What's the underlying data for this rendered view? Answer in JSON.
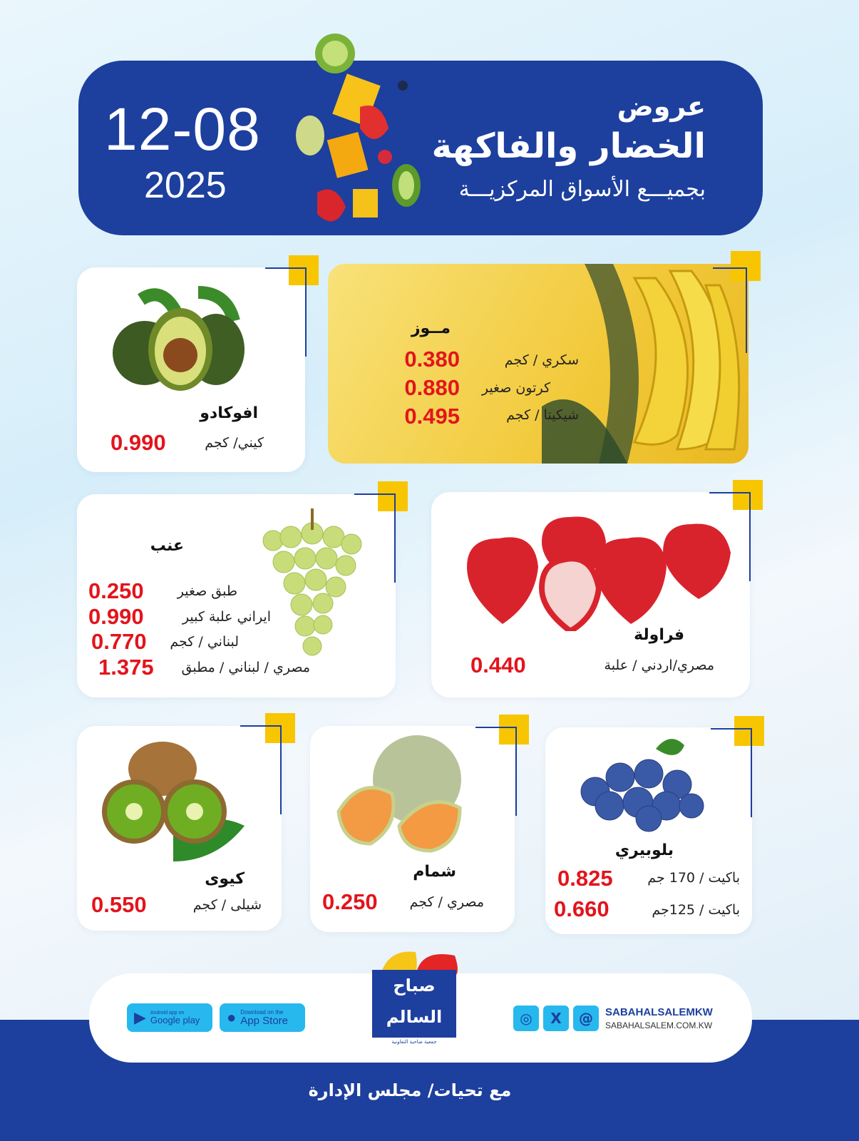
{
  "header": {
    "title_line1": "عروض",
    "title_line2": "الخضار والفاكهة",
    "subtitle": "بجميـــع الأسواق المركزيـــة",
    "date": "12-08",
    "year": "2025"
  },
  "products": {
    "banana": {
      "name": "مــوز",
      "rows": [
        {
          "label": "سكري / كجم",
          "price": "0.380"
        },
        {
          "label": "كرتون صغير",
          "price": "0.880"
        },
        {
          "label": "شيكيتا / كجم",
          "price": "0.495"
        }
      ]
    },
    "avocado": {
      "name": "افوكادو",
      "rows": [
        {
          "label": "كيني/ كجم",
          "price": "0.990"
        }
      ]
    },
    "grapes": {
      "name": "عنب",
      "rows": [
        {
          "label": "طبق صغير",
          "price": "0.250"
        },
        {
          "label": "ايراني علبة كبير",
          "price": "0.990"
        },
        {
          "label": "لبناني / كجم",
          "price": "0.770"
        },
        {
          "label": "مصري / لبناني / مطبق",
          "price": "1.375"
        }
      ]
    },
    "strawberry": {
      "name": "فراولة",
      "rows": [
        {
          "label": "مصري/اردني / علبة",
          "price": "0.440"
        }
      ]
    },
    "kiwi": {
      "name": "كيوى",
      "rows": [
        {
          "label": "شيلى / كجم",
          "price": "0.550"
        }
      ]
    },
    "melon": {
      "name": "شمام",
      "rows": [
        {
          "label": "مصري / كجم",
          "price": "0.250"
        }
      ]
    },
    "blueberry": {
      "name": "بلوبيري",
      "rows": [
        {
          "label": "باكيت / 170 جم",
          "price": "0.825"
        },
        {
          "label": "باكيت / 125جم",
          "price": "0.660"
        }
      ]
    }
  },
  "footer": {
    "google_small": "Android app on",
    "google_big": "Google play",
    "apple_small": "Download on the",
    "apple_big": "App Store",
    "handle": "SABAHALSALEMKW",
    "website": "SABAHALSALEM.COM.KW",
    "greeting": "مع تحيات/ مجلس الإدارة",
    "logo_text": "صباح السالم",
    "logo_sub": "جمعية ضاحية التعاونية"
  },
  "colors": {
    "navy": "#1d3f9e",
    "accent_yellow": "#f7c600",
    "price_red": "#e3141c",
    "store_blue": "#27b8ee"
  }
}
